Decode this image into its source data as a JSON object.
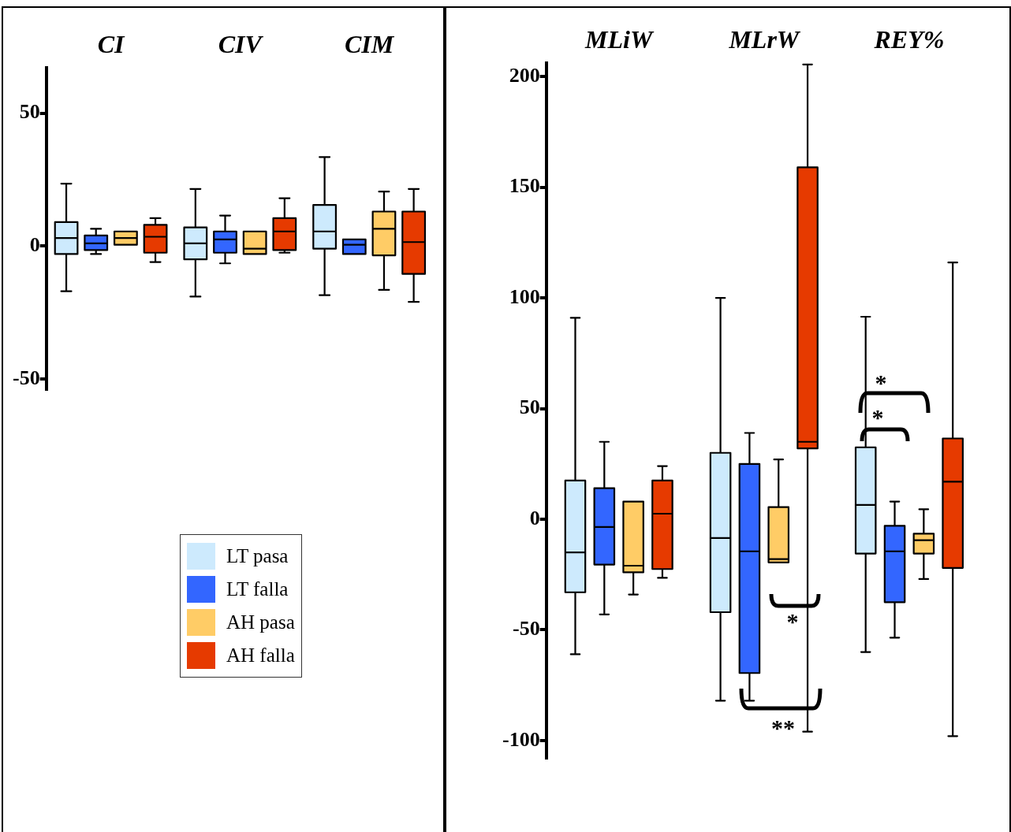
{
  "chart_data": [
    {
      "type": "box",
      "categories": [
        "CI",
        "CIV",
        "CIM"
      ],
      "ylim": [
        -54,
        67
      ],
      "yticks": [
        50,
        0,
        -50
      ],
      "grid": false,
      "legend": "bottom",
      "series": [
        {
          "name": "LT pasa",
          "color": "#cdeafd",
          "boxes": [
            {
              "low": -17,
              "q1": -3,
              "median": 3,
              "q3": 9,
              "high": 23.5
            },
            {
              "low": -19,
              "q1": -5,
              "median": 1,
              "q3": 7,
              "high": 21.5
            },
            {
              "low": -18.5,
              "q1": -1,
              "median": 5.5,
              "q3": 15.5,
              "high": 33.5
            }
          ]
        },
        {
          "name": "LT falla",
          "color": "#3366ff",
          "boxes": [
            {
              "low": -3,
              "q1": -1.5,
              "median": 1,
              "q3": 4,
              "high": 6.5
            },
            {
              "low": -6.5,
              "q1": -2.5,
              "median": 2.5,
              "q3": 5.5,
              "high": 11.5
            },
            {
              "low": -3,
              "q1": -3,
              "median": 0.5,
              "q3": 2.5,
              "high": 2.5
            }
          ]
        },
        {
          "name": "AH pasa",
          "color": "#ffcc66",
          "boxes": [
            {
              "low": 0.5,
              "q1": 0.5,
              "median": 3,
              "q3": 5.5,
              "high": 5.5
            },
            {
              "low": -3,
              "q1": -3,
              "median": -1,
              "q3": 5.5,
              "high": 5.5
            },
            {
              "low": -16.5,
              "q1": -3.5,
              "median": 6.5,
              "q3": 13,
              "high": 20.5
            }
          ]
        },
        {
          "name": "AH falla",
          "color": "#e63a00",
          "boxes": [
            {
              "low": -6,
              "q1": -2.5,
              "median": 3.5,
              "q3": 8,
              "high": 10.5
            },
            {
              "low": -2.5,
              "q1": -1.5,
              "median": 5.5,
              "q3": 10.5,
              "high": 18
            },
            {
              "low": -21,
              "q1": -10.5,
              "median": 1.5,
              "q3": 13,
              "high": 21.5
            }
          ]
        }
      ]
    },
    {
      "type": "box",
      "categories": [
        "MLiW",
        "MLrW",
        "REY%"
      ],
      "ylim": [
        -108,
        206
      ],
      "yticks": [
        200,
        150,
        100,
        50,
        0,
        -50,
        -100
      ],
      "grid": false,
      "series": [
        {
          "color": "#cdeafd",
          "boxes": [
            {
              "low": -61,
              "q1": -33,
              "median": -15,
              "q3": 17.5,
              "high": 91
            },
            {
              "low": -82,
              "q1": -42,
              "median": -8.5,
              "q3": 30,
              "high": 100
            },
            {
              "low": -60,
              "q1": -15.5,
              "median": 6.5,
              "q3": 32.5,
              "high": 91.5
            }
          ]
        },
        {
          "color": "#3366ff",
          "boxes": [
            {
              "low": -43,
              "q1": -20.5,
              "median": -3.5,
              "q3": 14,
              "high": 35
            },
            {
              "low": -82,
              "q1": -69.5,
              "median": -14.5,
              "q3": 25,
              "high": 39
            },
            {
              "low": -53.5,
              "q1": -37.5,
              "median": -14.5,
              "q3": -3,
              "high": 8
            }
          ]
        },
        {
          "color": "#ffcc66",
          "boxes": [
            {
              "low": -34,
              "q1": -24,
              "median": -21,
              "q3": 8,
              "high": 8
            },
            {
              "low": -19.5,
              "q1": -19.5,
              "median": -18,
              "q3": 5.5,
              "high": 27
            },
            {
              "low": -27,
              "q1": -15.5,
              "median": -9.5,
              "q3": -6.5,
              "high": 4.5
            }
          ]
        },
        {
          "color": "#e63a00",
          "boxes": [
            {
              "low": -26.5,
              "q1": -22.5,
              "median": 2.5,
              "q3": 17.5,
              "high": 24
            },
            {
              "low": -96,
              "q1": 32,
              "median": 35,
              "q3": 159,
              "high": 205.5
            },
            {
              "low": -98,
              "q1": -22,
              "median": 17,
              "q3": 36.5,
              "high": 116
            }
          ]
        }
      ],
      "annotations": [
        "*",
        "*",
        "*",
        "**"
      ]
    }
  ]
}
